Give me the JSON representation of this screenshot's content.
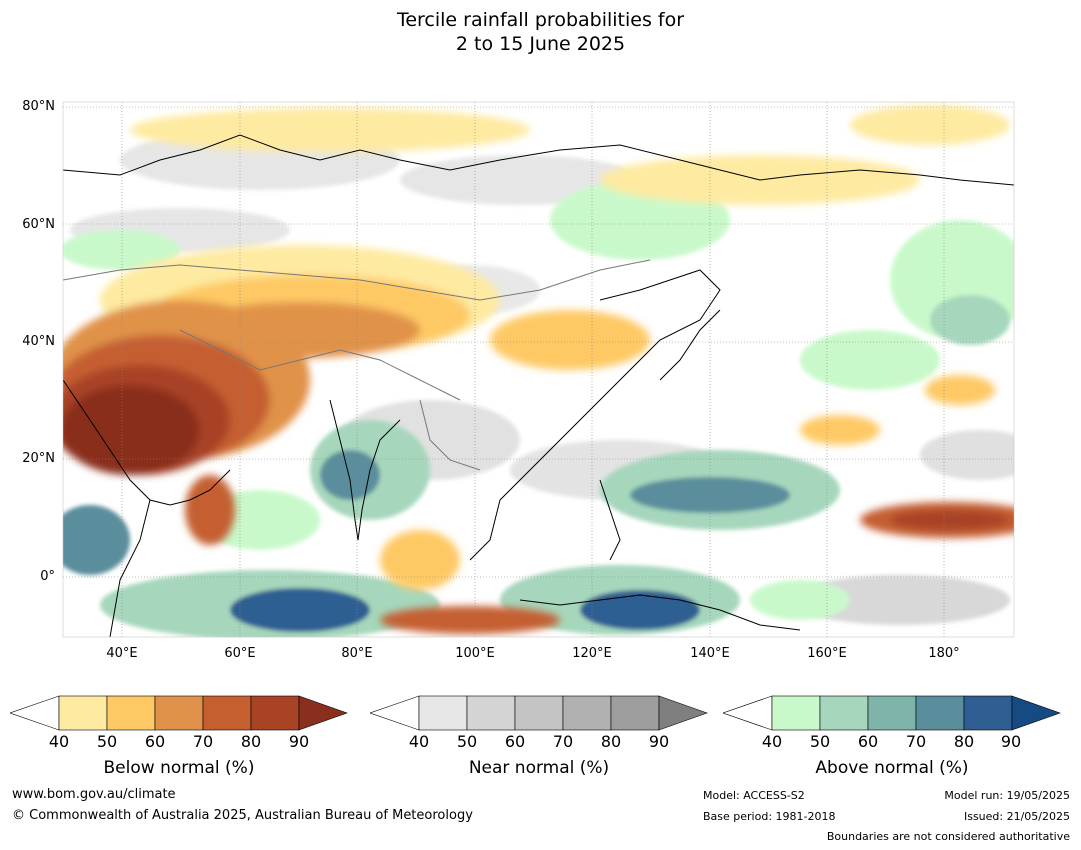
{
  "title": {
    "line1": "Tercile rainfall probabilities for",
    "line2": "2 to 15 June 2025"
  },
  "axes": {
    "lat_ticks": [
      "80°N",
      "60°N",
      "40°N",
      "20°N",
      "0°"
    ],
    "lon_ticks": [
      "40°E",
      "60°E",
      "80°E",
      "100°E",
      "120°E",
      "140°E",
      "160°E",
      "180°"
    ]
  },
  "legends": [
    {
      "caption": "Below normal (%)",
      "ticks": [
        "40",
        "50",
        "60",
        "70",
        "80",
        "90"
      ],
      "colors": [
        "#ffffff",
        "#feeaa0",
        "#fec965",
        "#e1924a",
        "#c55f30",
        "#a84326",
        "#8a2e1e"
      ]
    },
    {
      "caption": "Near normal (%)",
      "ticks": [
        "40",
        "50",
        "60",
        "70",
        "80",
        "90"
      ],
      "colors": [
        "#ffffff",
        "#e6e6e6",
        "#d4d4d4",
        "#c4c4c4",
        "#b1b1b1",
        "#9e9e9e",
        "#7f7f7f"
      ]
    },
    {
      "caption": "Above normal (%)",
      "ticks": [
        "40",
        "50",
        "60",
        "70",
        "80",
        "90"
      ],
      "colors": [
        "#ffffff",
        "#c9f9cb",
        "#a6d7bc",
        "#7fb4ab",
        "#5a8e9c",
        "#2e5e92",
        "#164a82"
      ]
    }
  ],
  "footer": {
    "website": "www.bom.gov.au/climate",
    "copyright": "© Commonwealth of Australia 2025, Australian Bureau of Meteorology",
    "model": "Model: ACCESS-S2",
    "base_period": "Base period: 1981-2018",
    "model_run": "Model run: 19/05/2025",
    "issued": "Issued: 21/05/2025",
    "boundaries": "Boundaries are not considered authoritative"
  }
}
